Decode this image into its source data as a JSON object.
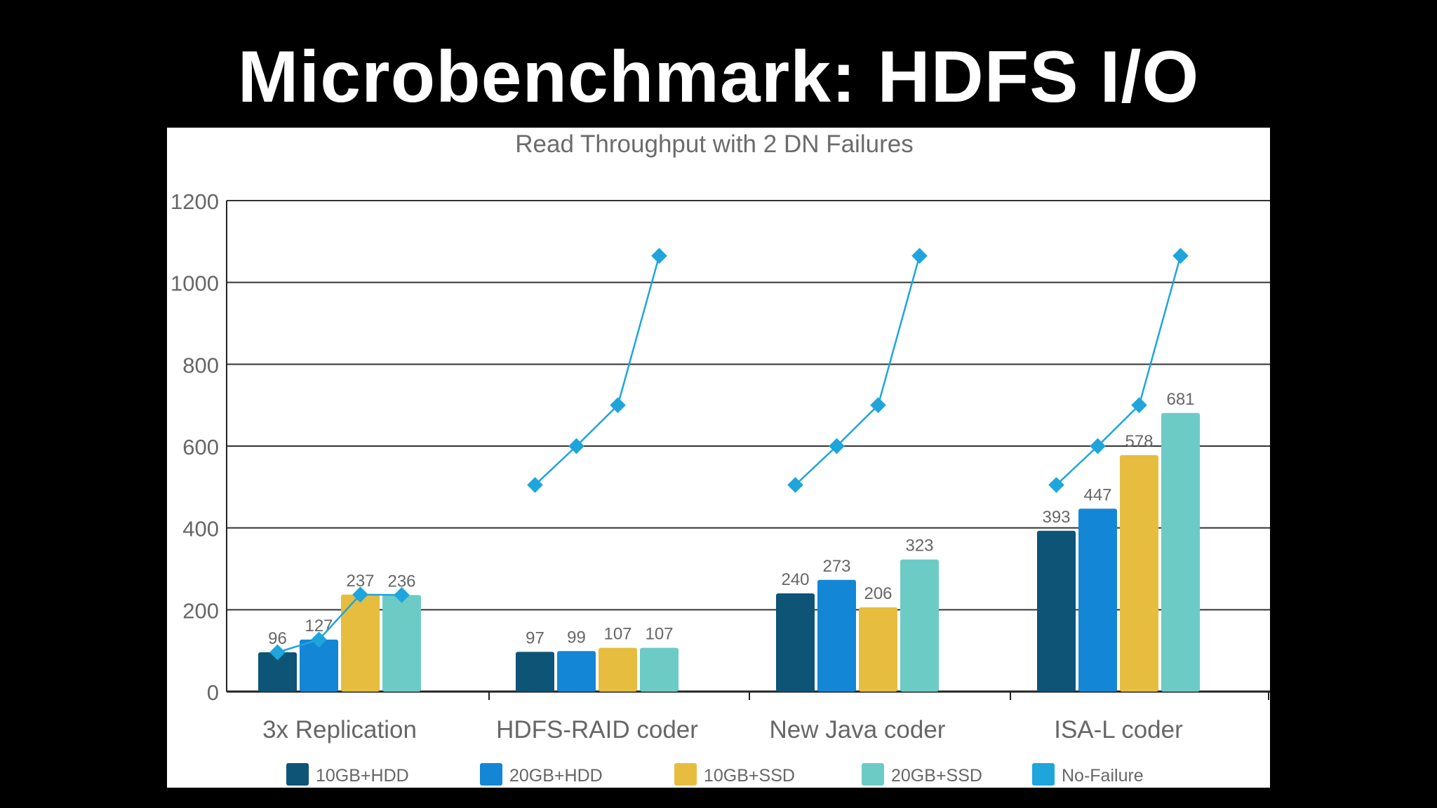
{
  "slide": {
    "title": "Microbenchmark: HDFS I/O"
  },
  "colors": {
    "background": "#000000",
    "panel": "#ffffff",
    "gridline": "#333333",
    "axis_text": "#666666",
    "series": [
      "#0d5477",
      "#1486d6",
      "#e6bd3f",
      "#6dcbc6",
      "#1ea5dc"
    ]
  },
  "chart_data": {
    "type": "bar",
    "title": "Read Throughput with 2 DN Failures",
    "xlabel": "",
    "ylabel": "",
    "ylim": [
      0,
      1200
    ],
    "yticks": [
      0,
      200,
      400,
      600,
      800,
      1000,
      1200
    ],
    "grid": true,
    "legend_position": "bottom",
    "categories": [
      "3x Replication",
      "HDFS-RAID coder",
      "New Java coder",
      "ISA-L coder"
    ],
    "series": [
      {
        "name": "10GB+HDD",
        "color": "#0d5477",
        "values": [
          96,
          97,
          240,
          393
        ]
      },
      {
        "name": "20GB+HDD",
        "color": "#1486d6",
        "values": [
          127,
          99,
          273,
          447
        ]
      },
      {
        "name": "10GB+SSD",
        "color": "#e6bd3f",
        "values": [
          237,
          107,
          206,
          578
        ]
      },
      {
        "name": "20GB+SSD",
        "color": "#6dcbc6",
        "values": [
          236,
          107,
          323,
          681
        ]
      }
    ],
    "line_series": {
      "name": "No-Failure",
      "color": "#1ea5dc",
      "values": [
        [
          96,
          127,
          237,
          236
        ],
        [
          505,
          600,
          700,
          1065
        ],
        [
          505,
          600,
          700,
          1065
        ],
        [
          505,
          600,
          700,
          1065
        ]
      ]
    }
  }
}
